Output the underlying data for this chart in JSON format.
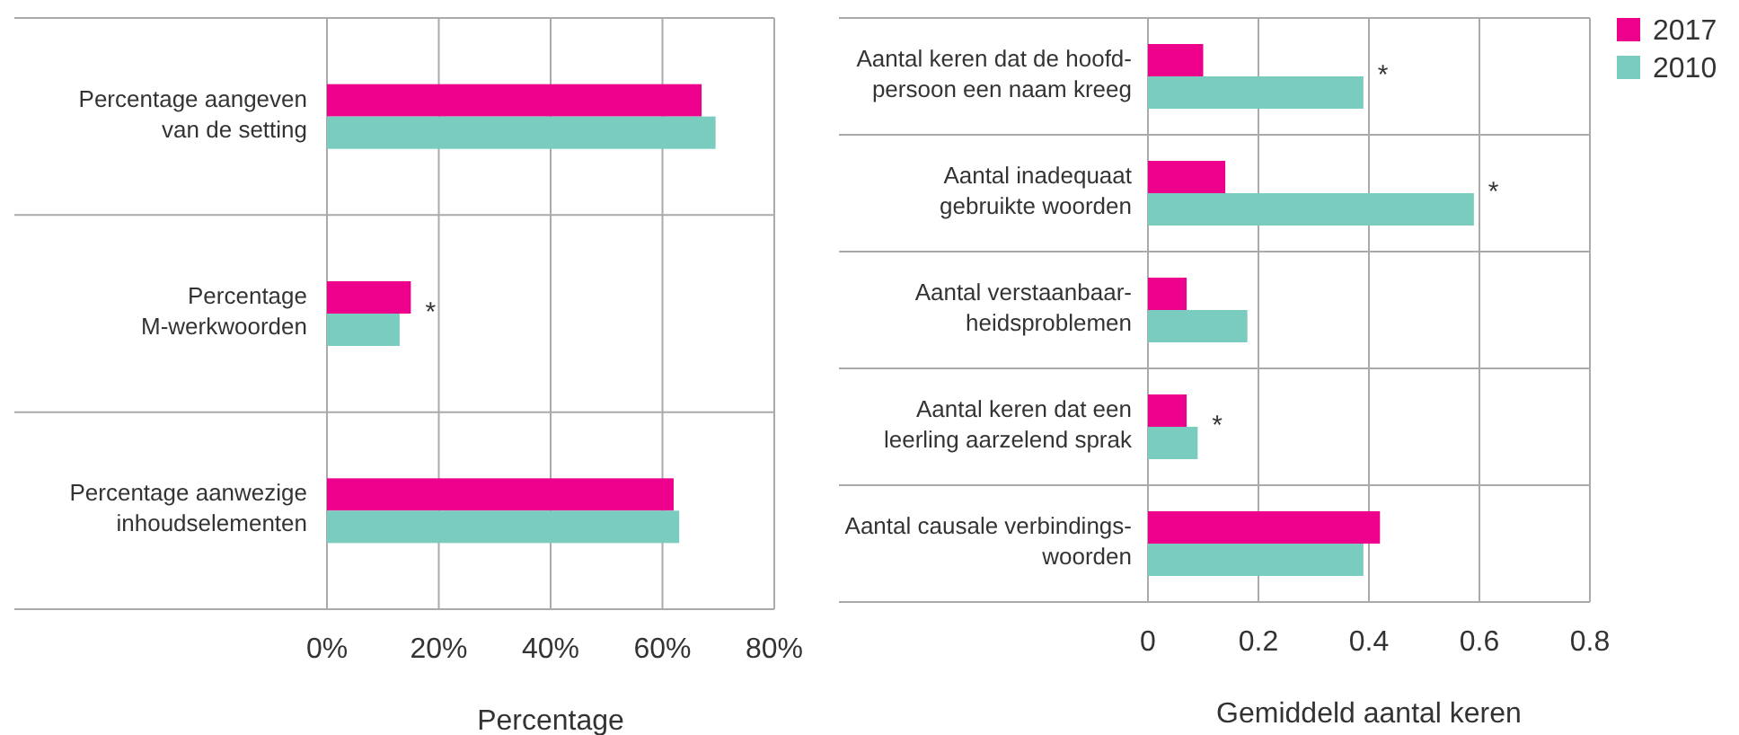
{
  "chart_data": [
    {
      "type": "bar",
      "orientation": "horizontal",
      "categories": [
        "Percentage aangeven\nvan de setting",
        "Percentage\nM-werkwoorden",
        "Percentage aanwezige\ninhoudselementen"
      ],
      "series": [
        {
          "color": "#ec008c",
          "values": [
            67,
            15,
            62
          ]
        },
        {
          "color": "#7accbf",
          "values": [
            69.5,
            13,
            63
          ]
        }
      ],
      "xlim": [
        0,
        80
      ],
      "xticks": [
        {
          "value": 0,
          "label": "0%"
        },
        {
          "value": 20,
          "label": "20%"
        },
        {
          "value": 40,
          "label": "40%"
        },
        {
          "value": 60,
          "label": "60%"
        },
        {
          "value": 80,
          "label": "80%"
        }
      ],
      "xlabel": "Percentage",
      "grid": "x",
      "legend": false,
      "annotations": [
        {
          "text": "*",
          "x": 15,
          "y": "Percentage\nM-werkwoorden"
        }
      ]
    },
    {
      "type": "bar",
      "orientation": "horizontal",
      "categories": [
        "Aantal keren dat de hoofd-\npersoon een naam kreeg",
        "Aantal inadequaat\ngebruikte woorden",
        "Aantal verstaanbaar-\nheidsproblemen",
        "Aantal keren dat een\nleerling aarzelend sprak",
        "Aantal causale verbindings-\nwoorden"
      ],
      "series": [
        {
          "name": "2017",
          "color": "#ec008c",
          "values": [
            0.1,
            0.14,
            0.07,
            0.07,
            0.42
          ]
        },
        {
          "name": "2010",
          "color": "#7accbf",
          "values": [
            0.39,
            0.59,
            0.18,
            0.09,
            0.39
          ]
        }
      ],
      "xlim": [
        0,
        0.8
      ],
      "xticks": [
        0,
        0.2,
        0.4,
        0.6,
        0.8
      ],
      "xlabel": "Gemiddeld aantal keren",
      "grid": "x",
      "legend": "top right",
      "annotations": [
        {
          "text": "*",
          "x": 0.39,
          "y": "Aantal keren dat de hoofd-\npersoon een naam kreeg"
        },
        {
          "text": "*",
          "x": 0.59,
          "y": "Aantal inadequaat\ngebruikte woorden"
        },
        {
          "text": "*",
          "x": 0.09,
          "y": "Aantal keren dat een\nleerling aarzelend sprak"
        }
      ]
    }
  ]
}
